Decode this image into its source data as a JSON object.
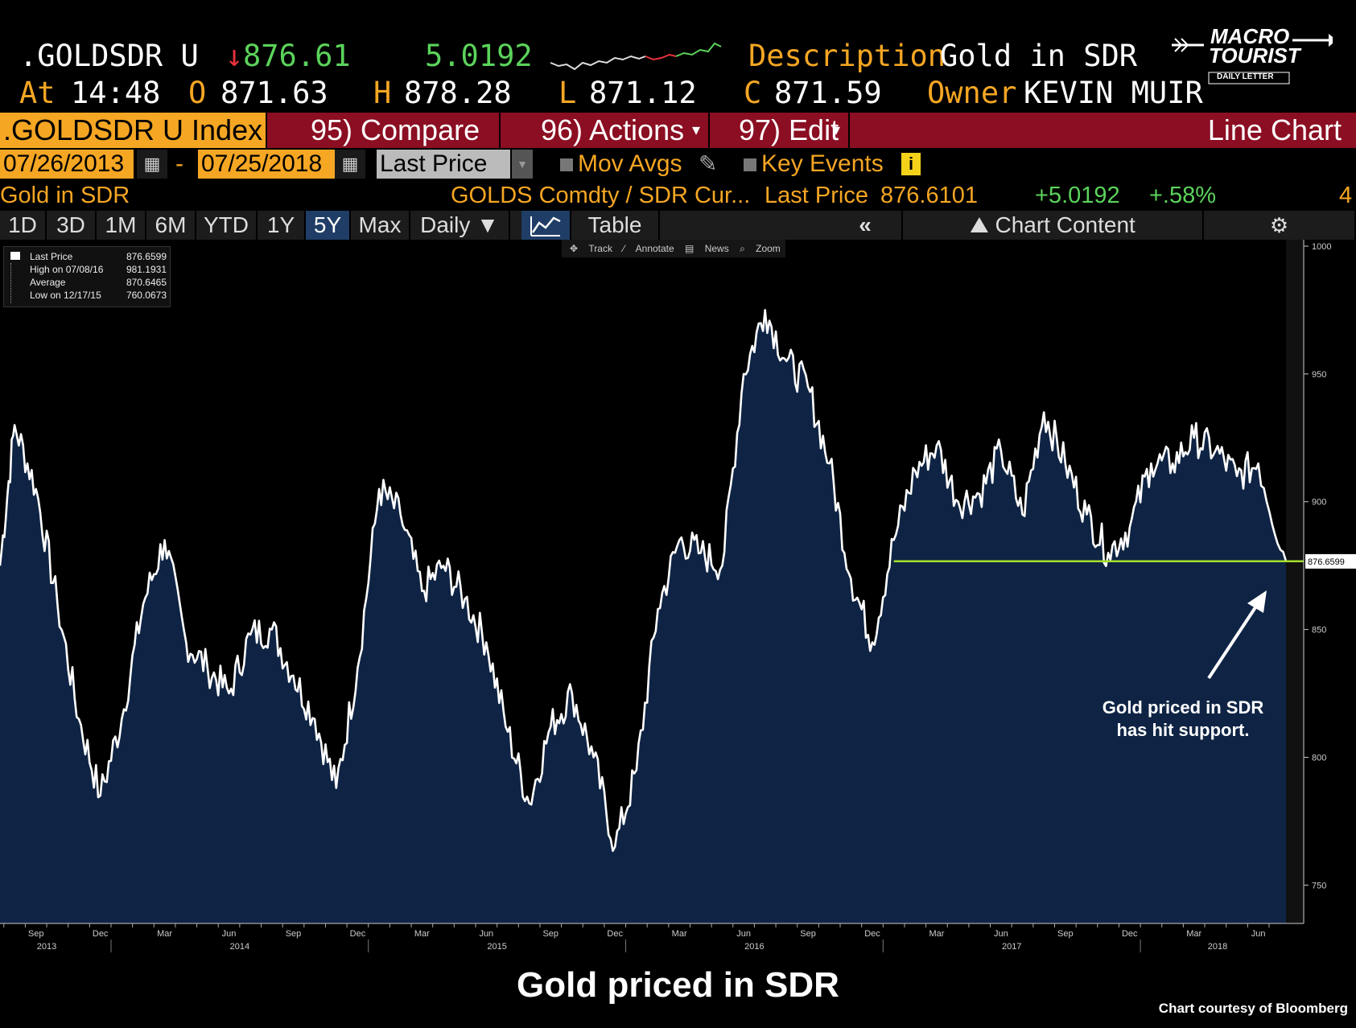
{
  "header": {
    "ticker": ".GOLDSDR U",
    "last_arrow": "↓",
    "last": "876.61",
    "change": "5.0192",
    "description_label": "Description",
    "description": "Gold in SDR",
    "at_label": "At",
    "time": "14:48",
    "open_label": "O",
    "open": "871.63",
    "high_label": "H",
    "high": "878.28",
    "low_label": "L",
    "low": "871.12",
    "close_label": "C",
    "close": "871.59",
    "owner_label": "Owner",
    "owner": "KEVIN MUIR"
  },
  "logo": {
    "line1": "MACRO",
    "line2": "TOURIST",
    "line3": "DAILY LETTER"
  },
  "menu": {
    "index": ".GOLDSDR U Index",
    "compare": "95) Compare",
    "actions": "96) Actions",
    "edit": "97) Edit",
    "chart_type": "Line Chart"
  },
  "controls": {
    "start_date": "07/26/2013",
    "dash": "-",
    "end_date": "07/25/2018",
    "field": "Last Price",
    "mov_avgs": "Mov Avgs",
    "key_events": "Key Events",
    "info": "i"
  },
  "infobar": {
    "name": "Gold in SDR",
    "formula": "GOLDS Comdty / SDR Cur...",
    "last_price_label": "Last Price",
    "last_price": "876.6101",
    "change": "+5.0192",
    "pct": "+.58%",
    "trailing": "4"
  },
  "timeframes": [
    "1D",
    "3D",
    "1M",
    "6M",
    "YTD",
    "1Y",
    "5Y",
    "Max",
    "Daily ▼"
  ],
  "selected_timeframe": "5Y",
  "view_buttons": {
    "table": "Table",
    "collapse": "«",
    "chart_content": "Chart Content"
  },
  "toolbar": {
    "track": "Track",
    "annotate": "Annotate",
    "news": "News",
    "zoom": "Zoom"
  },
  "legend": [
    {
      "label": "Last Price",
      "value": "876.6599"
    },
    {
      "label": "High on 07/08/16",
      "value": "981.1931"
    },
    {
      "label": "Average",
      "value": "870.6465"
    },
    {
      "label": "Low on 12/17/15",
      "value": "760.0673"
    }
  ],
  "annotation": {
    "line1": "Gold priced in SDR",
    "line2": "has hit support."
  },
  "caption": "Gold priced in SDR",
  "credit": "Chart courtesy of Bloomberg",
  "colors": {
    "amber": "#f5a623",
    "fill": "#0f2444",
    "support": "#a4e02c",
    "menu_red": "#8b0e22",
    "up_green": "#5bd35b",
    "down_red": "#e8323c"
  },
  "chart_data": {
    "type": "area",
    "title": "",
    "xlabel": "",
    "ylabel": "",
    "ylim": [
      735,
      1000
    ],
    "yticks": [
      750,
      800,
      850,
      900,
      950,
      1000
    ],
    "last_value_label": "876.6599",
    "support_level": 876.7,
    "support_start": "2017-01",
    "x_month_labels": [
      "Sep",
      "Dec",
      "Mar",
      "Jun",
      "Sep",
      "Dec",
      "Mar",
      "Jun",
      "Sep",
      "Dec",
      "Mar",
      "Jun",
      "Sep",
      "Dec",
      "Mar",
      "Jun",
      "Sep",
      "Dec",
      "Mar",
      "Jun"
    ],
    "x_year_labels": [
      "2013",
      "2014",
      "2015",
      "2016",
      "2017",
      "2018"
    ],
    "x": [
      "2013-07",
      "2013-08",
      "2013-09",
      "2013-10",
      "2013-11",
      "2013-12",
      "2014-01",
      "2014-02",
      "2014-03",
      "2014-04",
      "2014-05",
      "2014-06",
      "2014-07",
      "2014-08",
      "2014-09",
      "2014-10",
      "2014-11",
      "2014-12",
      "2015-01",
      "2015-02",
      "2015-03",
      "2015-04",
      "2015-05",
      "2015-06",
      "2015-07",
      "2015-08",
      "2015-09",
      "2015-10",
      "2015-11",
      "2015-12",
      "2016-01",
      "2016-02",
      "2016-03",
      "2016-04",
      "2016-05",
      "2016-06",
      "2016-07",
      "2016-08",
      "2016-09",
      "2016-10",
      "2016-11",
      "2016-12",
      "2017-01",
      "2017-02",
      "2017-03",
      "2017-04",
      "2017-05",
      "2017-06",
      "2017-07",
      "2017-08",
      "2017-09",
      "2017-10",
      "2017-11",
      "2017-12",
      "2018-01",
      "2018-02",
      "2018-03",
      "2018-04",
      "2018-05",
      "2018-06",
      "2018-07"
    ],
    "series": [
      {
        "values": [
          875,
          930,
          905,
          860,
          815,
          785,
          815,
          860,
          885,
          845,
          835,
          825,
          848,
          850,
          832,
          815,
          788,
          835,
          905,
          895,
          865,
          875,
          862,
          845,
          810,
          782,
          812,
          825,
          800,
          765,
          795,
          858,
          885,
          880,
          875,
          950,
          975,
          955,
          945,
          915,
          870,
          845,
          885,
          912,
          922,
          900,
          903,
          920,
          895,
          935,
          915,
          895,
          880,
          890,
          915,
          915,
          925,
          920,
          910,
          915,
          876.66
        ]
      }
    ]
  }
}
